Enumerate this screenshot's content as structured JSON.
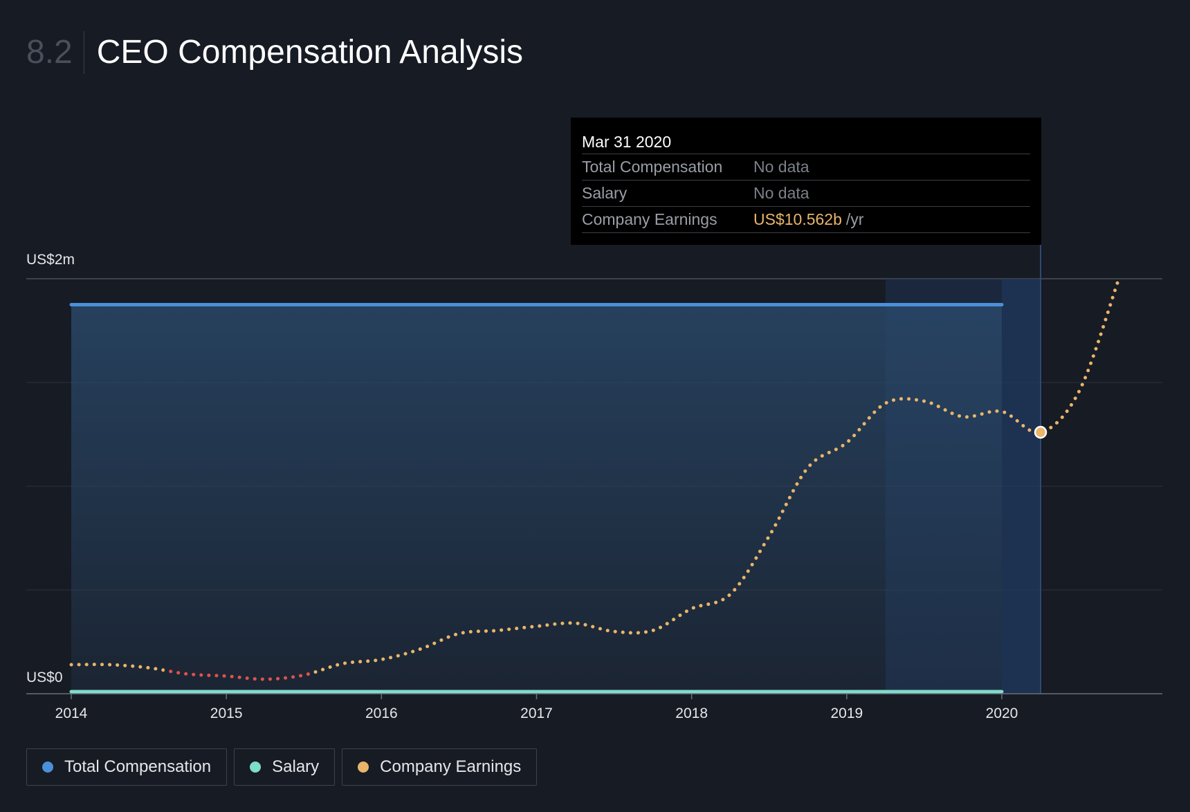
{
  "header": {
    "section_number": "8.2",
    "title": "CEO Compensation Analysis"
  },
  "tooltip": {
    "date": "Mar 31 2020",
    "rows": [
      {
        "label": "Total Compensation",
        "value": "No data",
        "unit": ""
      },
      {
        "label": "Salary",
        "value": "No data",
        "unit": ""
      },
      {
        "label": "Company Earnings",
        "value": "US$10.562b",
        "unit": "/yr"
      }
    ]
  },
  "legend": [
    {
      "label": "Total Compensation",
      "color": "#4a90d9"
    },
    {
      "label": "Salary",
      "color": "#7fdccb"
    },
    {
      "label": "Company Earnings",
      "color": "#e9b56a"
    }
  ],
  "chart_data": {
    "type": "line",
    "title": "CEO Compensation Analysis",
    "y_tick_labels": [
      "US$0",
      "US$2m"
    ],
    "ylim": [
      0,
      2000000
    ],
    "xlim": [
      2014,
      2021
    ],
    "x_ticks": [
      "2014",
      "2015",
      "2016",
      "2017",
      "2018",
      "2019",
      "2020"
    ],
    "grid": true,
    "legend_position": "bottom-left",
    "highlight_x": 2020.25,
    "series": [
      {
        "name": "Total Compensation",
        "color": "#4a90d9",
        "x": [
          2014.0,
          2020.0
        ],
        "y": [
          1875000,
          1875000
        ]
      },
      {
        "name": "Salary",
        "color": "#7fdccb",
        "x": [
          2014.0,
          2020.0
        ],
        "y": [
          10000,
          10000
        ]
      },
      {
        "name": "Company Earnings",
        "color": "#e9b56a",
        "negative_color": "#e05050",
        "x": [
          2014.0,
          2014.25,
          2014.5,
          2014.75,
          2015.0,
          2015.25,
          2015.5,
          2015.75,
          2016.0,
          2016.25,
          2016.5,
          2016.75,
          2017.0,
          2017.25,
          2017.5,
          2017.75,
          2018.0,
          2018.25,
          2018.5,
          2018.75,
          2019.0,
          2019.25,
          2019.5,
          2019.75,
          2020.0,
          2020.25,
          2020.5,
          2020.75
        ],
        "y": [
          140000,
          140000,
          125000,
          95000,
          85000,
          70000,
          90000,
          145000,
          165000,
          215000,
          290000,
          305000,
          325000,
          340000,
          300000,
          305000,
          410000,
          480000,
          760000,
          1090000,
          1210000,
          1400000,
          1410000,
          1335000,
          1360000,
          1260000,
          1460000,
          1990000
        ],
        "negative_x_range": [
          2014.6,
          2015.55
        ]
      }
    ]
  }
}
